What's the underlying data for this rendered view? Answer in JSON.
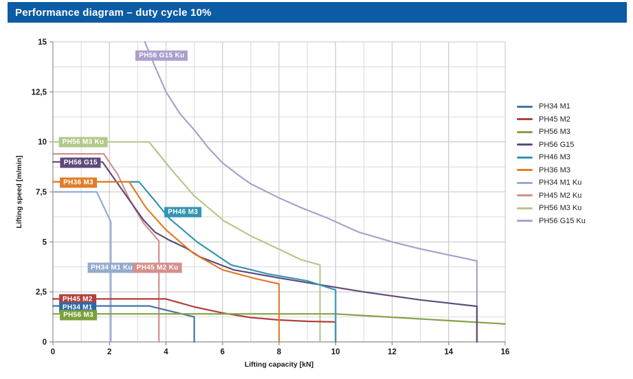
{
  "title_bar": {
    "text": "Performance diagram – duty cycle 10%",
    "bg": "#0b5ba5",
    "fg": "#ffffff"
  },
  "chart_data": {
    "type": "line",
    "title": "Performance diagram – duty cycle 10%",
    "xlabel": "Lifting capacity [kN]",
    "ylabel": "Lifting speed [m/min]",
    "xlim": [
      0,
      16
    ],
    "ylim": [
      0,
      15
    ],
    "x_ticks": [
      {
        "v": 0,
        "label": "0"
      },
      {
        "v": 2,
        "label": "2"
      },
      {
        "v": 4,
        "label": "4"
      },
      {
        "v": 6,
        "label": "6"
      },
      {
        "v": 8,
        "label": "8"
      },
      {
        "v": 10,
        "label": "10"
      },
      {
        "v": 12,
        "label": "12"
      },
      {
        "v": 14,
        "label": "14"
      },
      {
        "v": 16,
        "label": "16"
      }
    ],
    "y_ticks": [
      {
        "v": 0,
        "label": "0"
      },
      {
        "v": 2.5,
        "label": "2,5"
      },
      {
        "v": 5,
        "label": "5"
      },
      {
        "v": 7.5,
        "label": "7,5"
      },
      {
        "v": 10,
        "label": "10"
      },
      {
        "v": 12.5,
        "label": "12,5"
      },
      {
        "v": 15,
        "label": "15"
      }
    ],
    "grid": {
      "x_step": 1,
      "y_step": 1.25,
      "minor_color": "#d9d9d9",
      "major_color": "#c6c6c6",
      "axis_color": "#8c8c8c",
      "on": true
    },
    "legend_position": "right",
    "series": [
      {
        "name": "PH34 M1",
        "color": "#4473a5",
        "points": [
          [
            0,
            1.8
          ],
          [
            3.4,
            1.8
          ],
          [
            5,
            1.25
          ],
          [
            5,
            0
          ]
        ]
      },
      {
        "name": "PH45 M2",
        "color": "#b03f3c",
        "points": [
          [
            0,
            2.15
          ],
          [
            4,
            2.15
          ],
          [
            5,
            1.75
          ],
          [
            6,
            1.45
          ],
          [
            7,
            1.22
          ],
          [
            8,
            1.1
          ],
          [
            9,
            1.03
          ],
          [
            10,
            1.0
          ],
          [
            10,
            0
          ]
        ]
      },
      {
        "name": "PH56 M3",
        "color": "#83a144",
        "points": [
          [
            0,
            1.4
          ],
          [
            10,
            1.4
          ],
          [
            16,
            0.9
          ]
        ]
      },
      {
        "name": "PH56 G15",
        "color": "#5f497a",
        "points": [
          [
            0,
            9
          ],
          [
            1.75,
            9
          ],
          [
            2.1,
            8.3
          ],
          [
            2.45,
            7.6
          ],
          [
            2.8,
            6.9
          ],
          [
            3.2,
            6.1
          ],
          [
            3.6,
            5.5
          ],
          [
            4.1,
            5.1
          ],
          [
            4.7,
            4.7
          ],
          [
            5.2,
            4.25
          ],
          [
            6.4,
            3.6
          ],
          [
            8,
            3.2
          ],
          [
            9.7,
            2.8
          ],
          [
            11,
            2.5
          ],
          [
            13,
            2.1
          ],
          [
            15,
            1.78
          ],
          [
            15,
            0
          ]
        ]
      },
      {
        "name": "PH46 M3",
        "color": "#3495b2",
        "points": [
          [
            0,
            8
          ],
          [
            3.05,
            8
          ],
          [
            3.7,
            6.9
          ],
          [
            4.1,
            6.2
          ],
          [
            5.1,
            5.0
          ],
          [
            6.3,
            3.85
          ],
          [
            7.6,
            3.4
          ],
          [
            9,
            3.05
          ],
          [
            10,
            2.6
          ],
          [
            10,
            0
          ]
        ]
      },
      {
        "name": "PH36 M3",
        "color": "#e07c28",
        "points": [
          [
            0,
            8
          ],
          [
            2.7,
            8
          ],
          [
            3.3,
            6.7
          ],
          [
            4,
            5.6
          ],
          [
            5,
            4.4
          ],
          [
            6,
            3.6
          ],
          [
            7.2,
            3.15
          ],
          [
            8,
            2.9
          ],
          [
            8,
            0
          ]
        ]
      },
      {
        "name": "PH34 M1 Ku",
        "color": "#93abce",
        "points": [
          [
            0,
            7.5
          ],
          [
            1.55,
            7.5
          ],
          [
            2.05,
            6.0
          ],
          [
            2.05,
            0
          ]
        ]
      },
      {
        "name": "PH45 M2 Ku",
        "color": "#d48f8c",
        "points": [
          [
            0,
            9.4
          ],
          [
            1.8,
            9.4
          ],
          [
            2.3,
            8.35
          ],
          [
            2.7,
            7.15
          ],
          [
            3.2,
            5.95
          ],
          [
            3.75,
            5.05
          ],
          [
            3.75,
            0
          ]
        ]
      },
      {
        "name": "PH56 M3 Ku",
        "color": "#b2c98a",
        "points": [
          [
            0,
            10
          ],
          [
            3.4,
            10
          ],
          [
            4.2,
            8.6
          ],
          [
            5,
            7.3
          ],
          [
            6.05,
            6.05
          ],
          [
            7,
            5.3
          ],
          [
            7.9,
            4.7
          ],
          [
            8.8,
            4.1
          ],
          [
            9.45,
            3.85
          ],
          [
            9.45,
            0
          ]
        ]
      },
      {
        "name": "PH56 G15 Ku",
        "color": "#ab9fcc",
        "points": [
          [
            3.25,
            15
          ],
          [
            3.6,
            13.8
          ],
          [
            4,
            12.5
          ],
          [
            4.5,
            11.4
          ],
          [
            5,
            10.6
          ],
          [
            5.5,
            9.7
          ],
          [
            6,
            8.95
          ],
          [
            6.6,
            8.3
          ],
          [
            7,
            7.9
          ],
          [
            8,
            7.2
          ],
          [
            8.8,
            6.7
          ],
          [
            9.7,
            6.2
          ],
          [
            10.8,
            5.5
          ],
          [
            12,
            5.0
          ],
          [
            13,
            4.65
          ],
          [
            14,
            4.35
          ],
          [
            15,
            4.05
          ],
          [
            15,
            0
          ]
        ]
      }
    ],
    "draw_order": [
      "PH34 M1 Ku",
      "PH45 M2 Ku",
      "PH56 M3 Ku",
      "PH56 G15 Ku",
      "PH34 M1",
      "PH45 M2",
      "PH56 M3",
      "PH56 G15",
      "PH46 M3",
      "PH36 M3"
    ],
    "curve_labels": [
      {
        "text": "PH56 G15 Ku",
        "x": 3.85,
        "y": 14.3,
        "color": "#ab9fcc"
      },
      {
        "text": "PH56 M3 Ku",
        "x": 1.07,
        "y": 10.0,
        "color": "#b2c98a"
      },
      {
        "text": "PH56 G15",
        "x": 0.98,
        "y": 8.95,
        "color": "#5f497a"
      },
      {
        "text": "PH36 M3",
        "x": 0.9,
        "y": 7.97,
        "color": "#e07c28"
      },
      {
        "text": "PH46 M3",
        "x": 4.6,
        "y": 6.5,
        "color": "#3495b2"
      },
      {
        "text": "PH34 M1 Ku",
        "x": 2.08,
        "y": 3.7,
        "color": "#93abce"
      },
      {
        "text": "PH45 M2 Ku",
        "x": 3.7,
        "y": 3.7,
        "color": "#d48f8c"
      },
      {
        "text": "PH45 M2",
        "x": 0.87,
        "y": 2.13,
        "color": "#b03f3c"
      },
      {
        "text": "PH34 M1",
        "x": 0.87,
        "y": 1.73,
        "color": "#2a6bad"
      },
      {
        "text": "PH56 M3",
        "x": 0.9,
        "y": 1.33,
        "color": "#7ba03c"
      }
    ]
  }
}
